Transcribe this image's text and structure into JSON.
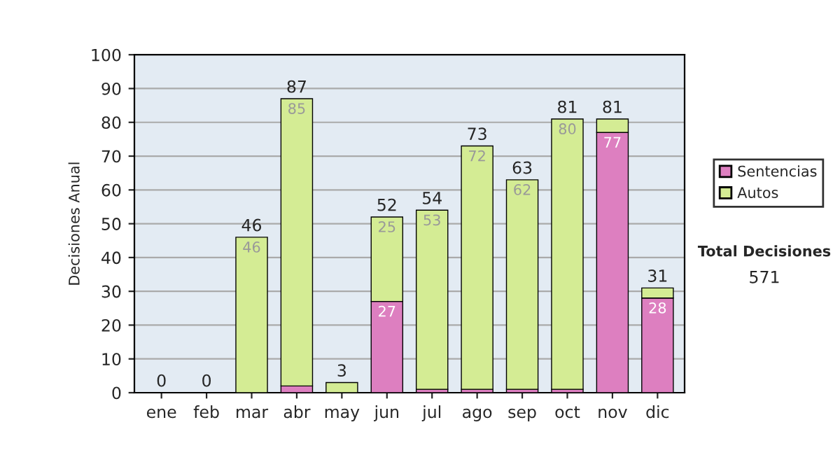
{
  "chart_data": {
    "type": "bar",
    "stacked": true,
    "ylabel": "Decisiones Anual",
    "categories": [
      "ene",
      "feb",
      "mar",
      "abr",
      "may",
      "jun",
      "jul",
      "ago",
      "sep",
      "oct",
      "nov",
      "dic"
    ],
    "series": [
      {
        "name": "Sentencias",
        "color": "#dd7fc0",
        "values": [
          0,
          0,
          0,
          2,
          0,
          27,
          1,
          1,
          1,
          1,
          77,
          28
        ],
        "value_labels": [
          null,
          null,
          null,
          null,
          null,
          "27",
          null,
          null,
          null,
          null,
          "77",
          "28"
        ]
      },
      {
        "name": "Autos",
        "color": "#d4ec94",
        "values": [
          0,
          0,
          46,
          85,
          3,
          25,
          53,
          72,
          62,
          80,
          4,
          3
        ],
        "value_labels": [
          null,
          null,
          "46",
          "85",
          null,
          "25",
          "53",
          "72",
          "62",
          "80",
          null,
          null
        ]
      }
    ],
    "totals": [
      "0",
      "0",
      "46",
      "87",
      "3",
      "52",
      "54",
      "73",
      "63",
      "81",
      "81",
      "31"
    ],
    "ylim": [
      0,
      100
    ],
    "yticks": [
      0,
      10,
      20,
      30,
      40,
      50,
      60,
      70,
      80,
      90,
      100
    ],
    "grid": "y",
    "legend": "right",
    "annotations": [
      "Total Decisiones",
      "571"
    ]
  }
}
